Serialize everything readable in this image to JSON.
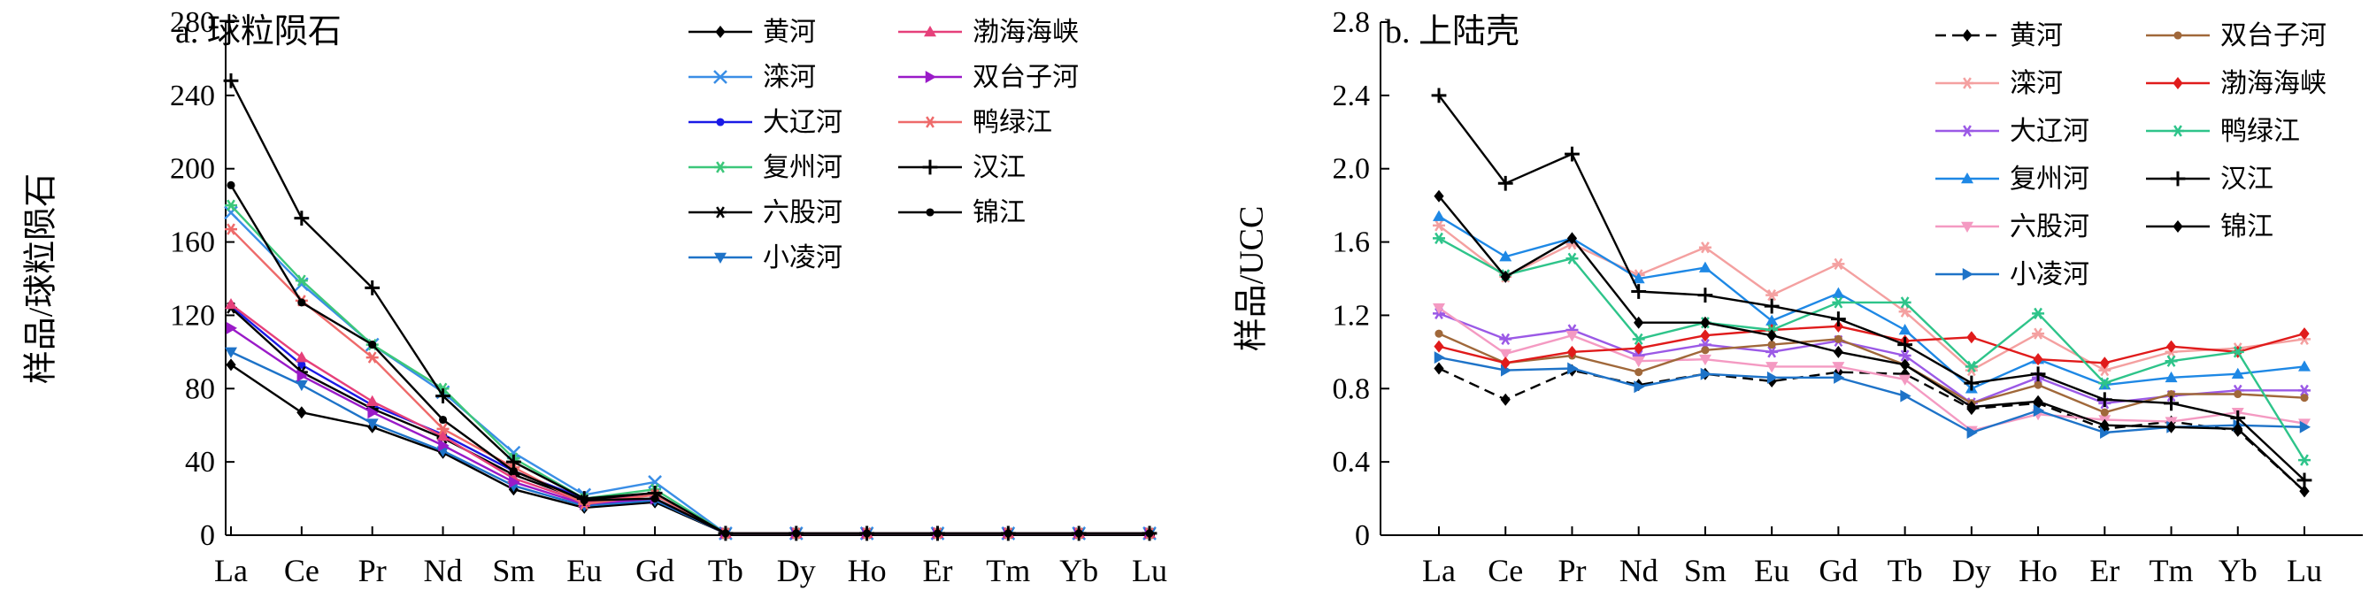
{
  "chart_data": [
    {
      "type": "line",
      "title": "a. 球粒陨石",
      "xlabel": "",
      "ylabel": "样品/球粒陨石",
      "categories": [
        "La",
        "Ce",
        "Pr",
        "Nd",
        "Sm",
        "Eu",
        "Gd",
        "Tb",
        "Dy",
        "Ho",
        "Er",
        "Tm",
        "Yb",
        "Lu"
      ],
      "ylim": [
        0,
        280
      ],
      "yticks": [
        "0",
        "40",
        "80",
        "120",
        "160",
        "200",
        "240",
        "280"
      ],
      "legend_position": "top-right",
      "legend_columns": 2,
      "series": [
        {
          "name": "黄河",
          "color": "#000000",
          "marker": "diamond",
          "values": [
            93,
            67,
            59,
            45,
            25,
            15,
            18,
            1,
            1,
            1,
            1,
            1,
            1,
            1
          ]
        },
        {
          "name": "滦河",
          "color": "#3a8ee6",
          "marker": "x",
          "values": [
            176,
            137,
            104,
            78,
            45,
            22,
            29,
            1,
            1,
            1,
            1,
            1,
            1,
            1
          ]
        },
        {
          "name": "大辽河",
          "color": "#1a1ae6",
          "marker": "circle",
          "values": [
            125,
            93,
            71,
            55,
            35,
            20,
            22,
            1,
            1,
            1,
            1,
            1,
            1,
            1
          ]
        },
        {
          "name": "复州河",
          "color": "#3cc77a",
          "marker": "asterisk",
          "values": [
            180,
            139,
            104,
            80,
            42,
            20,
            25,
            1,
            1,
            1,
            1,
            1,
            1,
            1
          ]
        },
        {
          "name": "六股河",
          "color": "#000000",
          "marker": "asterisk",
          "values": [
            124,
            89,
            69,
            53,
            33,
            19,
            22,
            1,
            1,
            1,
            1,
            1,
            1,
            1
          ]
        },
        {
          "name": "小凌河",
          "color": "#1e73c8",
          "marker": "triangle-down",
          "values": [
            100,
            82,
            61,
            46,
            27,
            16,
            19,
            1,
            1,
            1,
            1,
            1,
            1,
            1
          ]
        },
        {
          "name": "渤海海峡",
          "color": "#e6407a",
          "marker": "triangle-up",
          "values": [
            126,
            97,
            73,
            54,
            31,
            18,
            22,
            1,
            1,
            1,
            1,
            1,
            1,
            1
          ]
        },
        {
          "name": "双台子河",
          "color": "#9a1ac8",
          "marker": "triangle-right",
          "values": [
            113,
            87,
            67,
            49,
            29,
            17,
            20,
            1,
            1,
            1,
            1,
            1,
            1,
            1
          ]
        },
        {
          "name": "鸭绿江",
          "color": "#ee6a6a",
          "marker": "asterisk",
          "values": [
            167,
            128,
            97,
            58,
            37,
            17,
            22,
            1,
            1,
            1,
            1,
            1,
            1,
            1
          ]
        },
        {
          "name": "汉江",
          "color": "#000000",
          "marker": "plus",
          "values": [
            248,
            173,
            135,
            76,
            40,
            20,
            23,
            1,
            1,
            1,
            1,
            1,
            1,
            1
          ]
        },
        {
          "name": "锦江",
          "color": "#000000",
          "marker": "circle",
          "values": [
            191,
            127,
            104,
            63,
            35,
            19,
            20,
            1,
            1,
            1,
            1,
            1,
            1,
            1
          ]
        }
      ]
    },
    {
      "type": "line",
      "title": "b. 上陆壳",
      "xlabel": "",
      "ylabel": "样品/UCC",
      "categories": [
        "La",
        "Ce",
        "Pr",
        "Nd",
        "Sm",
        "Eu",
        "Gd",
        "Tb",
        "Dy",
        "Ho",
        "Er",
        "Tm",
        "Yb",
        "Lu"
      ],
      "ylim": [
        0,
        2.8
      ],
      "yticks": [
        "0",
        "0.4",
        "0.8",
        "1.2",
        "1.6",
        "2.0",
        "2.4",
        "2.8"
      ],
      "legend_position": "top-right",
      "legend_columns": 2,
      "series": [
        {
          "name": "黄河",
          "color": "#000000",
          "marker": "diamond",
          "dash": "12,7",
          "values": [
            0.91,
            0.74,
            0.9,
            0.82,
            0.88,
            0.84,
            0.89,
            0.88,
            0.69,
            0.72,
            0.58,
            0.62,
            0.57,
            0.24
          ]
        },
        {
          "name": "滦河",
          "color": "#f4a0a0",
          "marker": "asterisk",
          "values": [
            1.69,
            1.41,
            1.59,
            1.42,
            1.57,
            1.31,
            1.48,
            1.22,
            0.9,
            1.1,
            0.9,
            1.0,
            1.02,
            1.07
          ]
        },
        {
          "name": "大辽河",
          "color": "#9b59e6",
          "marker": "asterisk",
          "values": [
            1.21,
            1.07,
            1.12,
            0.98,
            1.04,
            1.0,
            1.06,
            0.98,
            0.72,
            0.86,
            0.72,
            0.76,
            0.79,
            0.79
          ]
        },
        {
          "name": "复州河",
          "color": "#1e88e5",
          "marker": "triangle-up",
          "values": [
            1.74,
            1.52,
            1.62,
            1.4,
            1.46,
            1.17,
            1.32,
            1.12,
            0.8,
            0.96,
            0.82,
            0.86,
            0.88,
            0.92
          ]
        },
        {
          "name": "六股河",
          "color": "#f49ac2",
          "marker": "triangle-down",
          "values": [
            1.24,
            0.99,
            1.09,
            0.95,
            0.96,
            0.92,
            0.92,
            0.85,
            0.57,
            0.66,
            0.63,
            0.62,
            0.67,
            0.61
          ]
        },
        {
          "name": "小凌河",
          "color": "#1e73c8",
          "marker": "triangle-right",
          "values": [
            0.97,
            0.9,
            0.91,
            0.81,
            0.88,
            0.86,
            0.86,
            0.76,
            0.56,
            0.68,
            0.56,
            0.59,
            0.6,
            0.59
          ]
        },
        {
          "name": "双台子河",
          "color": "#a0683a",
          "marker": "circle",
          "values": [
            1.1,
            0.94,
            0.98,
            0.89,
            1.01,
            1.04,
            1.07,
            0.93,
            0.72,
            0.82,
            0.67,
            0.77,
            0.77,
            0.75
          ]
        },
        {
          "name": "渤海海峡",
          "color": "#e01b1b",
          "marker": "diamond",
          "values": [
            1.03,
            0.94,
            1.0,
            1.02,
            1.09,
            1.12,
            1.14,
            1.06,
            1.08,
            0.96,
            0.94,
            1.03,
            1.0,
            1.1
          ]
        },
        {
          "name": "鸭绿江",
          "color": "#2ec48a",
          "marker": "asterisk",
          "values": [
            1.62,
            1.42,
            1.51,
            1.07,
            1.16,
            1.12,
            1.27,
            1.27,
            0.92,
            1.21,
            0.83,
            0.95,
            1.0,
            0.41
          ]
        },
        {
          "name": "汉江",
          "color": "#000000",
          "marker": "plus",
          "values": [
            2.4,
            1.92,
            2.08,
            1.33,
            1.31,
            1.25,
            1.18,
            1.04,
            0.83,
            0.88,
            0.74,
            0.72,
            0.64,
            0.3
          ]
        },
        {
          "name": "锦江",
          "color": "#000000",
          "marker": "diamond",
          "values": [
            1.85,
            1.41,
            1.62,
            1.16,
            1.16,
            1.09,
            1.0,
            0.93,
            0.7,
            0.73,
            0.6,
            0.59,
            0.58,
            0.24
          ]
        }
      ]
    }
  ]
}
